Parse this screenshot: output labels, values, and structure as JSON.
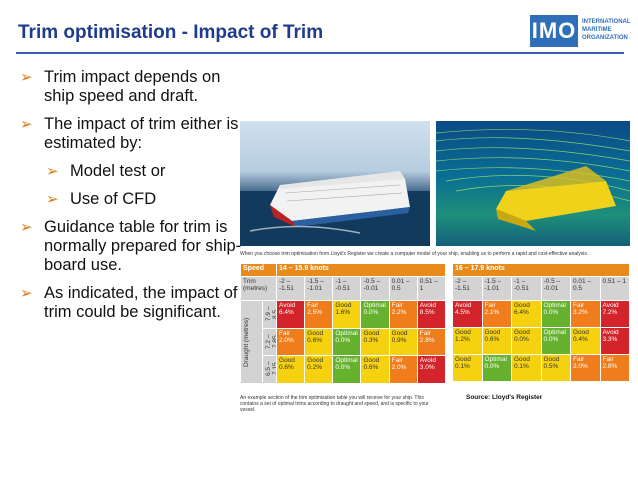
{
  "header": {
    "title": "Trim optimisation - Impact of Trim"
  },
  "logo": {
    "mark": "IMO",
    "org_line1": "INTERNATIONAL",
    "org_line2": "MARITIME",
    "org_line3": "ORGANIZATION"
  },
  "bullets": [
    {
      "text": "Trim impact depends on ship speed and draft.",
      "level": 1
    },
    {
      "text": "The impact of trim either is estimated by:",
      "level": 1
    },
    {
      "text": "Model test or",
      "level": 2
    },
    {
      "text": "Use of CFD",
      "level": 2
    },
    {
      "text": "Guidance table for trim is normally prepared for ship-board use.",
      "level": 1
    },
    {
      "text": "As indicated, the impact of trim could be significant.",
      "level": 1
    }
  ],
  "figure": {
    "caption_top": "When you choose trim optimisation from Lloyd's Register we create a computer model of your ship, enabling us to perform a rapid and cost-effective analysis.",
    "caption_bottom": "An example section of the trim optimisation table you will receive for your ship. This contains a set of optimal trims according to draught and speed, and is specific to your vessel.",
    "source": "Source: Lloyd's Register"
  },
  "table": {
    "speed_label": "Speed",
    "speed1": "14 – 15.9 knots",
    "speed2": "16 – 17.9 knots",
    "trim_label": "Trim (metres)",
    "draught_label": "Draught (metres)",
    "ranges": [
      "-2 – -1.51",
      "-1.5 – -1.01",
      "-1 – -0.51",
      "-0.5 – -0.01",
      "0.01 – 0.5",
      "0.51 – 1"
    ],
    "draughts": [
      "7.9 – 8.5",
      "7.2 – 7.85",
      "6.5 – 7.15"
    ],
    "block1": [
      [
        [
          "Avoid",
          "6.4%",
          "r"
        ],
        [
          "Fair",
          "2.5%",
          "o"
        ],
        [
          "Good",
          "1.6%",
          "y"
        ],
        [
          "Optimal",
          "0.0%",
          "gr"
        ],
        [
          "Fair",
          "2.2%",
          "o"
        ],
        [
          "Avoid",
          "8.5%",
          "r"
        ]
      ],
      [
        [
          "Fair",
          "2.0%",
          "o"
        ],
        [
          "Good",
          "0.6%",
          "y"
        ],
        [
          "Optimal",
          "0.0%",
          "gr"
        ],
        [
          "Good",
          "0.3%",
          "y"
        ],
        [
          "Good",
          "0.9%",
          "y"
        ],
        [
          "Fair",
          "2.8%",
          "o"
        ]
      ],
      [
        [
          "Good",
          "0.6%",
          "y"
        ],
        [
          "Good",
          "0.2%",
          "y"
        ],
        [
          "Optimal",
          "0.0%",
          "gr"
        ],
        [
          "Good",
          "0.6%",
          "y"
        ],
        [
          "Fair",
          "2.0%",
          "o"
        ],
        [
          "Avoid",
          "3.0%",
          "r"
        ]
      ]
    ],
    "block2": [
      [
        [
          "Avoid",
          "4.5%",
          "r"
        ],
        [
          "Fair",
          "2.1%",
          "o"
        ],
        [
          "Good",
          "6.4%",
          "y"
        ],
        [
          "Optimal",
          "0.0%",
          "gr"
        ],
        [
          "Fair",
          "3.2%",
          "o"
        ],
        [
          "Avoid",
          "7.2%",
          "r"
        ]
      ],
      [
        [
          "Good",
          "1.2%",
          "y"
        ],
        [
          "Good",
          "0.6%",
          "y"
        ],
        [
          "Good",
          "0.0%",
          "y"
        ],
        [
          "Optimal",
          "0.0%",
          "gr"
        ],
        [
          "Good",
          "0.4%",
          "y"
        ],
        [
          "Avoid",
          "3.3%",
          "r"
        ]
      ],
      [
        [
          "Good",
          "0.1%",
          "y"
        ],
        [
          "Optimal",
          "0.0%",
          "gr"
        ],
        [
          "Good",
          "0.1%",
          "y"
        ],
        [
          "Good",
          "0.5%",
          "y"
        ],
        [
          "Fair",
          "2.0%",
          "o"
        ],
        [
          "Fair",
          "2.8%",
          "o"
        ]
      ]
    ]
  }
}
